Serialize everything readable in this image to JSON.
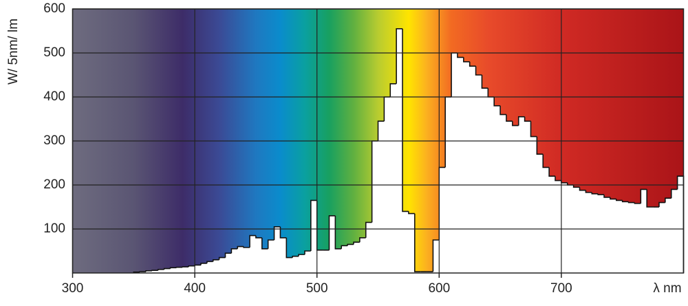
{
  "chart_data": {
    "type": "step",
    "y_label": "W/ 5nm/ lm",
    "x_label": "λ nm",
    "x": [
      350,
      355,
      360,
      365,
      370,
      375,
      380,
      385,
      390,
      395,
      400,
      405,
      410,
      415,
      420,
      425,
      430,
      435,
      440,
      445,
      450,
      455,
      460,
      465,
      470,
      475,
      480,
      485,
      490,
      495,
      500,
      505,
      510,
      515,
      520,
      525,
      530,
      535,
      540,
      545,
      550,
      555,
      560,
      565,
      570,
      575,
      580,
      585,
      590,
      595,
      600,
      605,
      610,
      615,
      620,
      625,
      630,
      635,
      640,
      645,
      650,
      655,
      660,
      665,
      670,
      675,
      680,
      685,
      690,
      695,
      700,
      705,
      710,
      715,
      720,
      725,
      730,
      735,
      740,
      745,
      750,
      755,
      760,
      765,
      770,
      775,
      780,
      785,
      790,
      795
    ],
    "values": [
      2,
      3,
      5,
      6,
      8,
      10,
      12,
      13,
      14,
      16,
      18,
      22,
      26,
      30,
      35,
      45,
      55,
      60,
      58,
      85,
      80,
      55,
      75,
      105,
      80,
      35,
      38,
      42,
      50,
      165,
      52,
      52,
      130,
      55,
      62,
      65,
      70,
      80,
      115,
      300,
      345,
      400,
      430,
      555,
      140,
      135,
      3,
      3,
      3,
      75,
      240,
      400,
      500,
      490,
      480,
      470,
      450,
      420,
      400,
      380,
      360,
      345,
      335,
      355,
      345,
      310,
      270,
      240,
      220,
      210,
      205,
      200,
      195,
      188,
      183,
      180,
      178,
      172,
      168,
      165,
      162,
      160,
      158,
      190,
      150,
      150,
      160,
      170,
      190,
      220
    ],
    "xlim": [
      300,
      800
    ],
    "xticks": [
      300,
      400,
      500,
      600,
      700
    ],
    "ylim": [
      0,
      600
    ],
    "yticks": [
      100,
      200,
      300,
      400,
      500,
      600
    ],
    "grid": true,
    "color": "#ffffff"
  }
}
